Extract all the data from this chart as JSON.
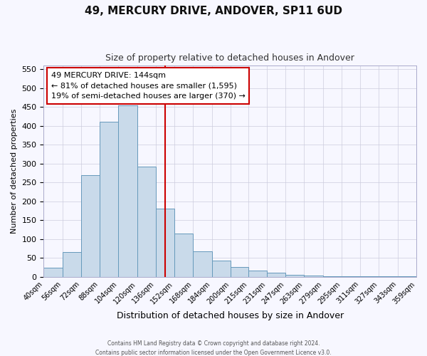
{
  "title": "49, MERCURY DRIVE, ANDOVER, SP11 6UD",
  "subtitle": "Size of property relative to detached houses in Andover",
  "xlabel": "Distribution of detached houses by size in Andover",
  "ylabel": "Number of detached properties",
  "bar_color": "#c9daea",
  "bar_edge_color": "#6699bb",
  "background_color": "#f7f7ff",
  "grid_color": "#ccccdd",
  "bin_labels": [
    "40sqm",
    "56sqm",
    "72sqm",
    "88sqm",
    "104sqm",
    "120sqm",
    "136sqm",
    "152sqm",
    "168sqm",
    "184sqm",
    "200sqm",
    "215sqm",
    "231sqm",
    "247sqm",
    "263sqm",
    "279sqm",
    "295sqm",
    "311sqm",
    "327sqm",
    "343sqm",
    "359sqm"
  ],
  "bin_edges": [
    40,
    56,
    72,
    88,
    104,
    120,
    136,
    152,
    168,
    184,
    200,
    215,
    231,
    247,
    263,
    279,
    295,
    311,
    327,
    343,
    359
  ],
  "counts": [
    25,
    65,
    270,
    410,
    455,
    293,
    180,
    115,
    67,
    44,
    27,
    16,
    11,
    5,
    3,
    2,
    2,
    1,
    1,
    1
  ],
  "marker_value": 144,
  "marker_line_color": "#cc0000",
  "annotation_box_edge_color": "#cc0000",
  "annotation_lines": [
    "49 MERCURY DRIVE: 144sqm",
    "← 81% of detached houses are smaller (1,595)",
    "19% of semi-detached houses are larger (370) →"
  ],
  "ylim": [
    0,
    560
  ],
  "yticks": [
    0,
    50,
    100,
    150,
    200,
    250,
    300,
    350,
    400,
    450,
    500,
    550
  ],
  "footer1": "Contains HM Land Registry data © Crown copyright and database right 2024.",
  "footer2": "Contains public sector information licensed under the Open Government Licence v3.0."
}
